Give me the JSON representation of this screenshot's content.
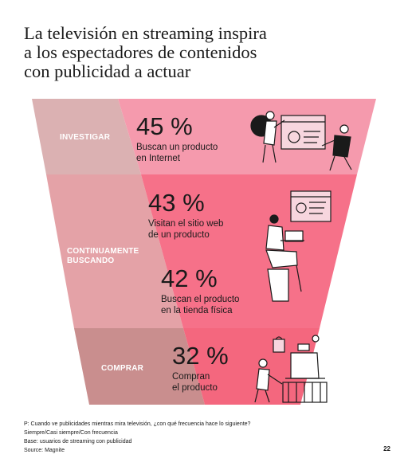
{
  "title_lines": [
    "La televisión en streaming inspira",
    "a los espectadores de contenidos",
    "con publicidad a actuar"
  ],
  "stages": [
    {
      "label_lines": [
        "INVESTIGAR"
      ]
    },
    {
      "label_lines": [
        "CONTINUAMENTE",
        "BUSCANDO"
      ]
    },
    {
      "label_lines": [
        "COMPRAR"
      ]
    }
  ],
  "stats": [
    {
      "value": "45 %",
      "desc_lines": [
        "Buscan un producto",
        "en Internet"
      ]
    },
    {
      "value": "43 %",
      "desc_lines": [
        "Visitan el sitio web",
        "de un producto"
      ]
    },
    {
      "value": "42 %",
      "desc_lines": [
        "Buscan el producto",
        "en la tienda física"
      ]
    },
    {
      "value": "32 %",
      "desc_lines": [
        "Compran",
        "el producto"
      ]
    }
  ],
  "footer_lines": [
    "P: Cuando ve publicidades mientras mira televisión, ¿con qué frecuencia hace lo siguiente?",
    "Siempre/Casi siempre/Con frecuencia",
    "Base: usuarios de streaming con publicidad",
    "Source: Magnite"
  ],
  "page_number": "22",
  "colors": {
    "stage1_left": "#dbb1b2",
    "stage1_right": "#f59aad",
    "stage2_left": "#e4a2a7",
    "stage2_right": "#f67189",
    "stage3_left": "#c98e8e",
    "stage3_right": "#f4677e"
  },
  "icons": [
    "person-at-board-illustration",
    "browser-window-illustration",
    "person-with-laptop-illustration",
    "shopping-cart-illustration",
    "shopping-bag-icon"
  ]
}
